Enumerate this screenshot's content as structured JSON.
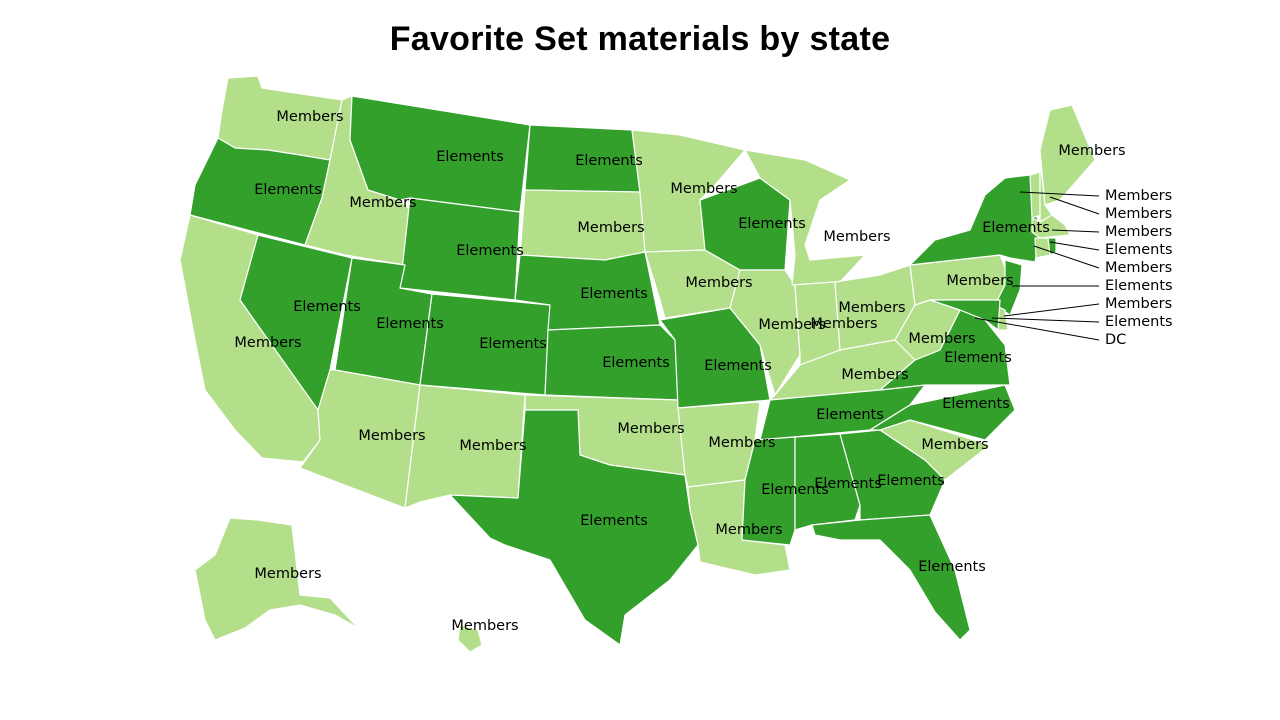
{
  "title": "Favorite Set materials by state",
  "colors": {
    "Members": "#b3df8a",
    "Elements": "#33a02c"
  },
  "states": [
    {
      "code": "WA",
      "value": "Members"
    },
    {
      "code": "OR",
      "value": "Elements"
    },
    {
      "code": "CA",
      "value": "Members"
    },
    {
      "code": "ID",
      "value": "Members"
    },
    {
      "code": "NV",
      "value": "Elements"
    },
    {
      "code": "MT",
      "value": "Elements"
    },
    {
      "code": "WY",
      "value": "Elements"
    },
    {
      "code": "UT",
      "value": "Elements"
    },
    {
      "code": "AZ",
      "value": "Members"
    },
    {
      "code": "CO",
      "value": "Elements"
    },
    {
      "code": "NM",
      "value": "Members"
    },
    {
      "code": "ND",
      "value": "Elements"
    },
    {
      "code": "SD",
      "value": "Members"
    },
    {
      "code": "NE",
      "value": "Elements"
    },
    {
      "code": "KS",
      "value": "Elements"
    },
    {
      "code": "OK",
      "value": "Members"
    },
    {
      "code": "TX",
      "value": "Elements"
    },
    {
      "code": "MN",
      "value": "Members"
    },
    {
      "code": "IA",
      "value": "Members"
    },
    {
      "code": "MO",
      "value": "Elements"
    },
    {
      "code": "AR",
      "value": "Members"
    },
    {
      "code": "LA",
      "value": "Members"
    },
    {
      "code": "WI",
      "value": "Elements"
    },
    {
      "code": "IL",
      "value": "Members"
    },
    {
      "code": "MI",
      "value": "Members"
    },
    {
      "code": "IN",
      "value": "Members"
    },
    {
      "code": "OH",
      "value": "Members"
    },
    {
      "code": "KY",
      "value": "Members"
    },
    {
      "code": "TN",
      "value": "Elements"
    },
    {
      "code": "MS",
      "value": "Elements"
    },
    {
      "code": "AL",
      "value": "Elements"
    },
    {
      "code": "GA",
      "value": "Elements"
    },
    {
      "code": "FL",
      "value": "Elements"
    },
    {
      "code": "SC",
      "value": "Members"
    },
    {
      "code": "NC",
      "value": "Elements"
    },
    {
      "code": "VA",
      "value": "Elements"
    },
    {
      "code": "WV",
      "value": "Members"
    },
    {
      "code": "PA",
      "value": "Members"
    },
    {
      "code": "NY",
      "value": "Elements"
    },
    {
      "code": "NJ",
      "value": "Elements"
    },
    {
      "code": "DE",
      "value": "Members"
    },
    {
      "code": "MD",
      "value": "Elements"
    },
    {
      "code": "DC",
      "value": "DC"
    },
    {
      "code": "ME",
      "value": "Members"
    },
    {
      "code": "VT",
      "value": "Members"
    },
    {
      "code": "NH",
      "value": "Members"
    },
    {
      "code": "MA",
      "value": "Members"
    },
    {
      "code": "CT",
      "value": "Members"
    },
    {
      "code": "RI",
      "value": "Elements"
    },
    {
      "code": "AK",
      "value": "Members"
    },
    {
      "code": "HI",
      "value": "Members"
    }
  ],
  "callout_labels": [
    "Members",
    "Members",
    "Members",
    "Elements",
    "Members",
    "Elements",
    "Members",
    "Elements",
    "DC"
  ]
}
